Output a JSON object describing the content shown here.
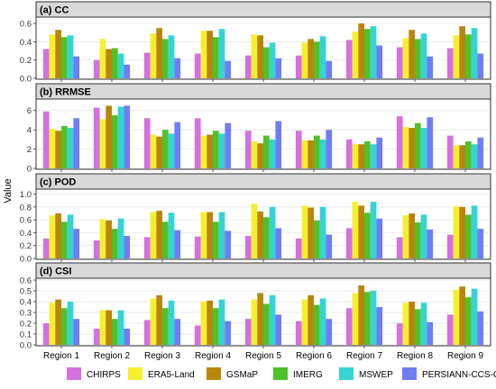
{
  "figure": {
    "ylabel": "Value",
    "categories": [
      "Region 1",
      "Region 2",
      "Region 3",
      "Region 4",
      "Region 5",
      "Region 6",
      "Region 7",
      "Region 8",
      "Region 9"
    ],
    "legend_position": "bottom"
  },
  "colors": {
    "CHIRPS": "#d66fe0",
    "ERA5-Land": "#f6ef2e",
    "GSMaP": "#b8860b",
    "IMERG": "#4fc12b",
    "MSWEP": "#35d3d3",
    "PERSIANN-CCS-CDR": "#6f7df2"
  },
  "chart_data": [
    {
      "type": "bar",
      "title": "(a) CC",
      "ylim": [
        0,
        0.65
      ],
      "yticks": [
        "0.0",
        "0.2",
        "0.4",
        "0.6"
      ],
      "ytick_values": [
        0,
        0.2,
        0.4,
        0.6
      ],
      "grid": true,
      "categories": [
        "Region 1",
        "Region 2",
        "Region 3",
        "Region 4",
        "Region 5",
        "Region 6",
        "Region 7",
        "Region 8",
        "Region 9"
      ],
      "series": [
        {
          "name": "CHIRPS",
          "values": [
            0.32,
            0.2,
            0.28,
            0.27,
            0.25,
            0.25,
            0.42,
            0.34,
            0.33
          ]
        },
        {
          "name": "ERA5-Land",
          "values": [
            0.48,
            0.43,
            0.49,
            0.52,
            0.48,
            0.39,
            0.51,
            0.44,
            0.47
          ]
        },
        {
          "name": "GSMaP",
          "values": [
            0.53,
            0.32,
            0.55,
            0.52,
            0.47,
            0.43,
            0.6,
            0.53,
            0.57
          ]
        },
        {
          "name": "IMERG",
          "values": [
            0.45,
            0.33,
            0.43,
            0.45,
            0.34,
            0.4,
            0.54,
            0.43,
            0.48
          ]
        },
        {
          "name": "MSWEP",
          "values": [
            0.47,
            0.27,
            0.47,
            0.54,
            0.39,
            0.46,
            0.57,
            0.49,
            0.55
          ]
        },
        {
          "name": "PERSIANN-CCS-CDR",
          "values": [
            0.24,
            0.15,
            0.22,
            0.19,
            0.22,
            0.19,
            0.36,
            0.24,
            0.27
          ]
        }
      ]
    },
    {
      "type": "bar",
      "title": "(b) RRMSE",
      "ylim": [
        0,
        7
      ],
      "yticks": [
        "0",
        "2",
        "4",
        "6"
      ],
      "ytick_values": [
        0,
        2,
        4,
        6
      ],
      "grid": true,
      "categories": [
        "Region 1",
        "Region 2",
        "Region 3",
        "Region 4",
        "Region 5",
        "Region 6",
        "Region 7",
        "Region 8",
        "Region 9"
      ],
      "series": [
        {
          "name": "CHIRPS",
          "values": [
            5.9,
            6.3,
            5.2,
            5.2,
            3.9,
            3.9,
            3.0,
            5.4,
            3.4
          ]
        },
        {
          "name": "ERA5-Land",
          "values": [
            4.1,
            5.1,
            3.5,
            3.4,
            2.8,
            2.9,
            2.5,
            4.3,
            2.4
          ]
        },
        {
          "name": "GSMaP",
          "values": [
            3.9,
            6.5,
            3.3,
            3.5,
            2.6,
            2.9,
            2.5,
            4.2,
            2.4
          ]
        },
        {
          "name": "IMERG",
          "values": [
            4.4,
            5.5,
            4.0,
            3.9,
            3.4,
            3.4,
            2.8,
            4.7,
            2.8
          ]
        },
        {
          "name": "MSWEP",
          "values": [
            4.2,
            6.4,
            3.6,
            3.6,
            3.0,
            3.0,
            2.5,
            4.2,
            2.5
          ]
        },
        {
          "name": "PERSIANN-CCS-CDR",
          "values": [
            5.2,
            6.5,
            4.8,
            4.7,
            4.9,
            4.0,
            3.2,
            5.3,
            3.2
          ]
        }
      ]
    },
    {
      "type": "bar",
      "title": "(c) POD",
      "ylim": [
        0,
        1.05
      ],
      "yticks": [
        "0.0",
        "0.2",
        "0.4",
        "0.6",
        "0.8",
        "1.0"
      ],
      "ytick_values": [
        0,
        0.2,
        0.4,
        0.6,
        0.8,
        1.0
      ],
      "grid": true,
      "categories": [
        "Region 1",
        "Region 2",
        "Region 3",
        "Region 4",
        "Region 5",
        "Region 6",
        "Region 7",
        "Region 8",
        "Region 9"
      ],
      "series": [
        {
          "name": "CHIRPS",
          "values": [
            0.31,
            0.28,
            0.33,
            0.34,
            0.35,
            0.31,
            0.47,
            0.33,
            0.37
          ]
        },
        {
          "name": "ERA5-Land",
          "values": [
            0.67,
            0.61,
            0.72,
            0.72,
            0.85,
            0.82,
            0.88,
            0.67,
            0.81
          ]
        },
        {
          "name": "GSMaP",
          "values": [
            0.7,
            0.59,
            0.74,
            0.72,
            0.73,
            0.79,
            0.82,
            0.7,
            0.8
          ]
        },
        {
          "name": "IMERG",
          "values": [
            0.57,
            0.46,
            0.57,
            0.57,
            0.64,
            0.59,
            0.71,
            0.56,
            0.68
          ]
        },
        {
          "name": "MSWEP",
          "values": [
            0.68,
            0.62,
            0.71,
            0.72,
            0.8,
            0.8,
            0.88,
            0.68,
            0.82
          ]
        },
        {
          "name": "PERSIANN-CCS-CDR",
          "values": [
            0.46,
            0.35,
            0.44,
            0.43,
            0.47,
            0.37,
            0.62,
            0.45,
            0.46
          ]
        }
      ]
    },
    {
      "type": "bar",
      "title": "(d) CSI",
      "ylim": [
        0,
        0.6
      ],
      "yticks": [
        "0.0",
        "0.1",
        "0.2",
        "0.3",
        "0.4",
        "0.5",
        "0.6"
      ],
      "ytick_values": [
        0,
        0.1,
        0.2,
        0.3,
        0.4,
        0.5,
        0.6
      ],
      "grid": true,
      "categories": [
        "Region 1",
        "Region 2",
        "Region 3",
        "Region 4",
        "Region 5",
        "Region 6",
        "Region 7",
        "Region 8",
        "Region 9"
      ],
      "series": [
        {
          "name": "CHIRPS",
          "values": [
            0.2,
            0.15,
            0.23,
            0.18,
            0.24,
            0.22,
            0.34,
            0.2,
            0.28
          ]
        },
        {
          "name": "ERA5-Land",
          "values": [
            0.39,
            0.32,
            0.43,
            0.4,
            0.42,
            0.42,
            0.48,
            0.39,
            0.51
          ]
        },
        {
          "name": "GSMaP",
          "values": [
            0.42,
            0.32,
            0.46,
            0.41,
            0.48,
            0.46,
            0.55,
            0.4,
            0.54
          ]
        },
        {
          "name": "IMERG",
          "values": [
            0.34,
            0.24,
            0.34,
            0.34,
            0.38,
            0.37,
            0.49,
            0.33,
            0.44
          ]
        },
        {
          "name": "MSWEP",
          "values": [
            0.4,
            0.32,
            0.41,
            0.42,
            0.46,
            0.43,
            0.5,
            0.39,
            0.52
          ]
        },
        {
          "name": "PERSIANN-CCS-CDR",
          "values": [
            0.24,
            0.15,
            0.24,
            0.22,
            0.28,
            0.24,
            0.35,
            0.21,
            0.31
          ]
        }
      ]
    }
  ]
}
